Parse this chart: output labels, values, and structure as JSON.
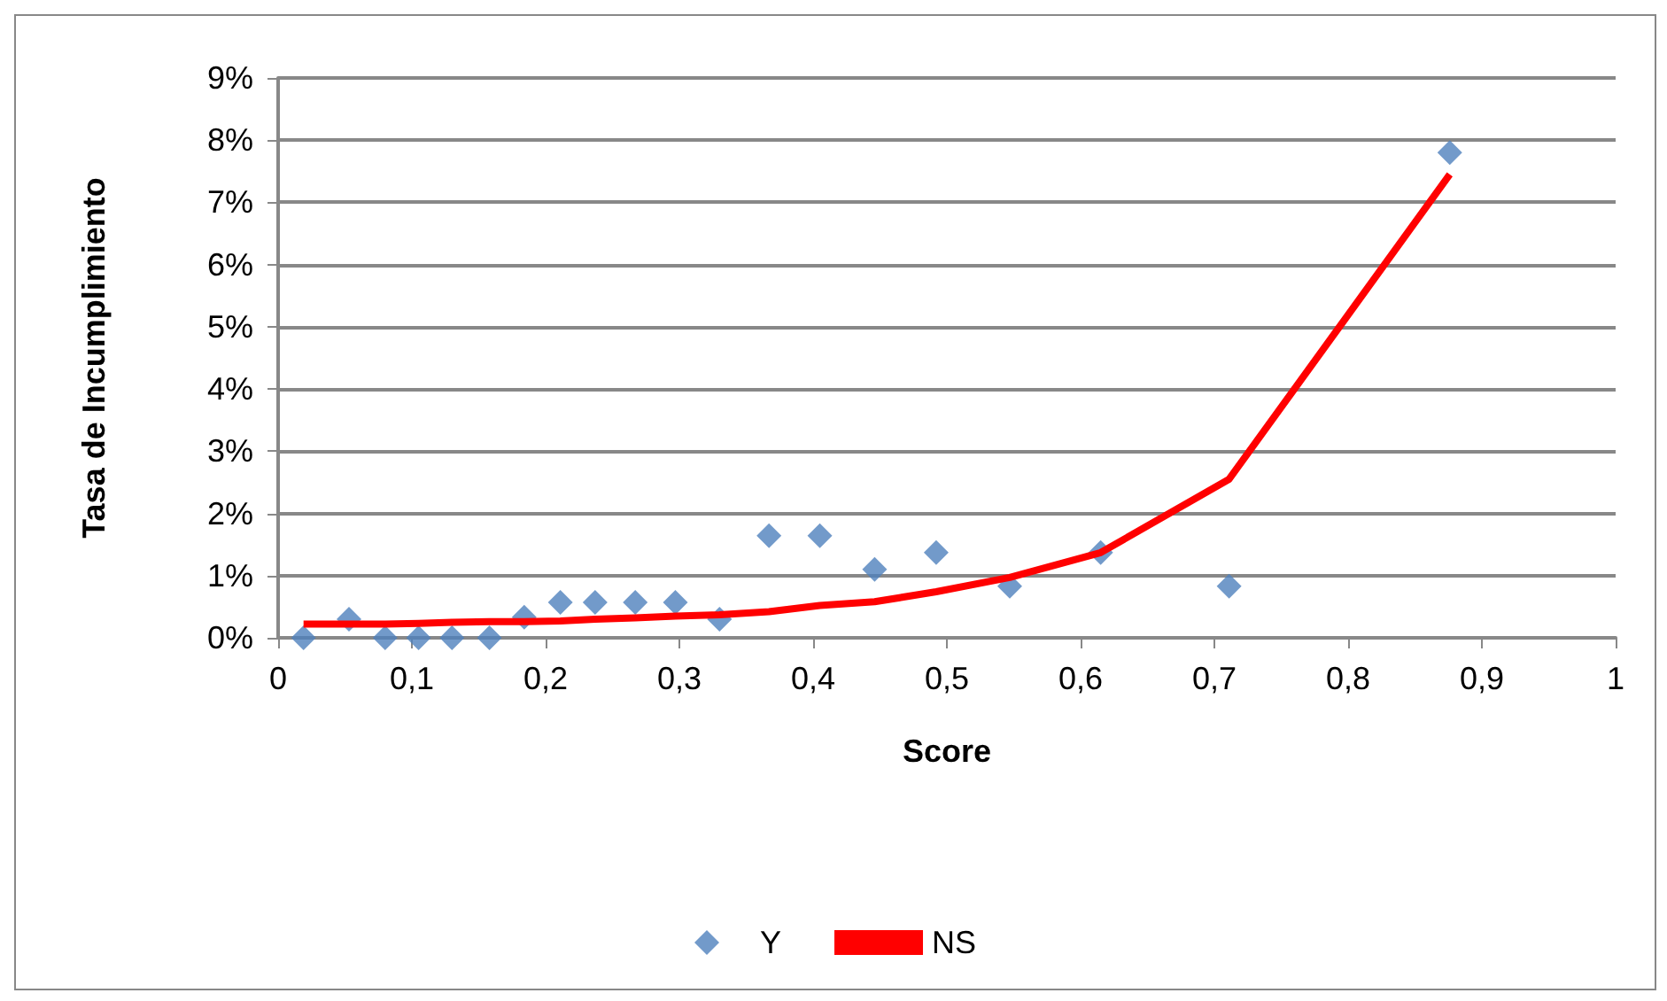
{
  "chart_data": {
    "type": "scatter",
    "xlabel": "Score",
    "ylabel": "Tasa de Incumplimiento",
    "x": [
      0.019,
      0.053,
      0.08,
      0.105,
      0.13,
      0.158,
      0.184,
      0.211,
      0.237,
      0.267,
      0.297,
      0.33,
      0.367,
      0.405,
      0.446,
      0.492,
      0.547,
      0.615,
      0.711,
      0.876
    ],
    "series": [
      {
        "name": "Y",
        "marker": "diamond",
        "color": "#4f81bd",
        "values": [
          0,
          0.3,
          0,
          0,
          0,
          0,
          0.33,
          0.57,
          0.57,
          0.57,
          0.57,
          0.3,
          1.64,
          1.64,
          1.1,
          1.37,
          0.83,
          1.37,
          0.83,
          7.8
        ]
      },
      {
        "name": "NS",
        "type": "line",
        "marker": "none",
        "line_style": "solid",
        "color": "#ff0000",
        "values": [
          0.22,
          0.22,
          0.22,
          0.23,
          0.25,
          0.26,
          0.26,
          0.27,
          0.3,
          0.32,
          0.35,
          0.37,
          0.42,
          0.52,
          0.58,
          0.74,
          0.97,
          1.37,
          2.55,
          7.45
        ]
      }
    ],
    "xlim": [
      0,
      1
    ],
    "xticks": [
      0,
      {
        "value": 0.1,
        "label": "0,1"
      },
      {
        "value": 0.2,
        "label": "0,2"
      },
      {
        "value": 0.3,
        "label": "0,3"
      },
      {
        "value": 0.4,
        "label": "0,4"
      },
      {
        "value": 0.5,
        "label": "0,5"
      },
      {
        "value": 0.6,
        "label": "0,6"
      },
      {
        "value": 0.7,
        "label": "0,7"
      },
      {
        "value": 0.8,
        "label": "0,8"
      },
      {
        "value": 0.9,
        "label": "0,9"
      },
      1
    ],
    "ylim": [
      0,
      9
    ],
    "yticks": [
      {
        "value": 0,
        "label": "0%"
      },
      {
        "value": 1,
        "label": "1%"
      },
      {
        "value": 2,
        "label": "2%"
      },
      {
        "value": 3,
        "label": "3%"
      },
      {
        "value": 4,
        "label": "4%"
      },
      {
        "value": 5,
        "label": "5%"
      },
      {
        "value": 6,
        "label": "6%"
      },
      {
        "value": 7,
        "label": "7%"
      },
      {
        "value": 8,
        "label": "8%"
      },
      {
        "value": 9,
        "label": "9%"
      }
    ],
    "grid": "y",
    "legend": "bottom"
  }
}
